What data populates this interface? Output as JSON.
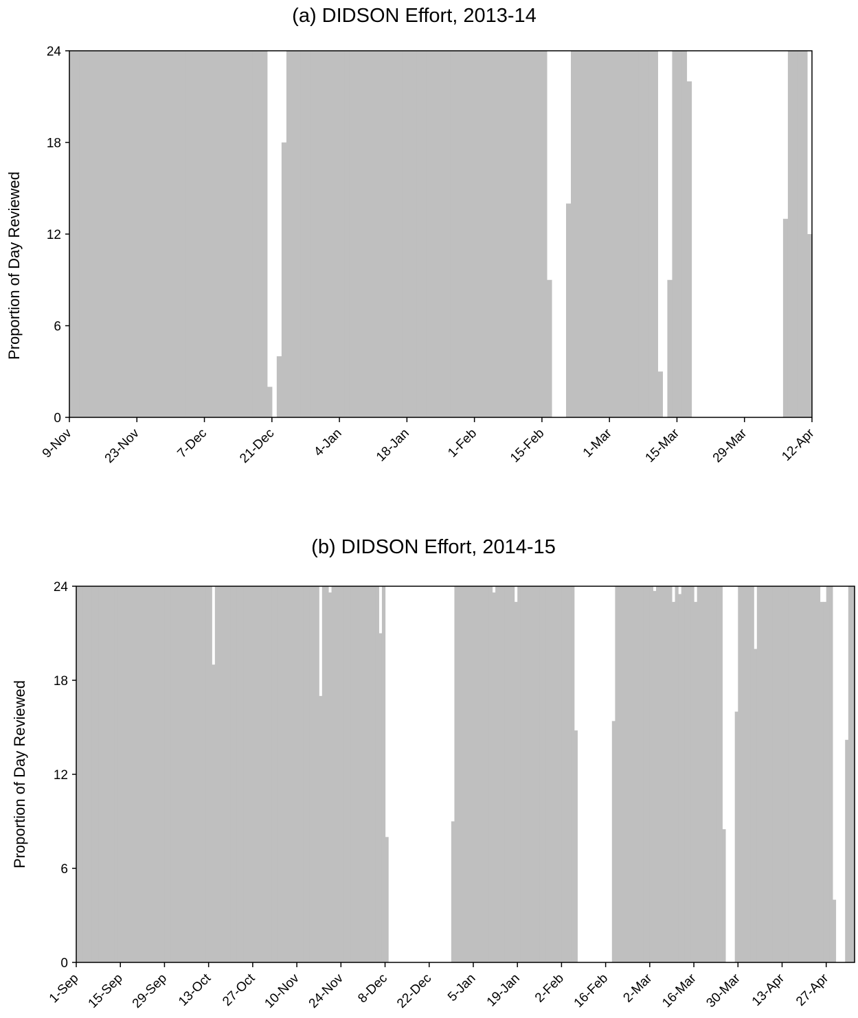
{
  "chart_data": [
    {
      "type": "bar",
      "title": "(a) DIDSON Effort, 2013-14",
      "xlabel": "",
      "ylabel": "Proportion of Day Reviewed",
      "ylim": [
        0,
        24
      ],
      "yticks": [
        "0",
        "6",
        "12",
        "18",
        "24"
      ],
      "xtick_labels": [
        "9-Nov",
        "23-Nov",
        "7-Dec",
        "21-Dec",
        "4-Jan",
        "18-Jan",
        "1-Feb",
        "15-Feb",
        "1-Mar",
        "15-Mar",
        "29-Mar",
        "12-Apr"
      ],
      "x_start": "2013-11-09",
      "bar_color": "#bfbfbf",
      "grid": false,
      "legend": "none",
      "series": [
        {
          "values": [
            24,
            24,
            24,
            24,
            24,
            24,
            24,
            24,
            24,
            24,
            24,
            24,
            24,
            24,
            24,
            24,
            24,
            24,
            24,
            24,
            24,
            24,
            24,
            24,
            24,
            24,
            24,
            24,
            24,
            24,
            24,
            24,
            24,
            24,
            24,
            24,
            24,
            24,
            24,
            24,
            24,
            2,
            0,
            4,
            18,
            24,
            24,
            24,
            24,
            24,
            24,
            24,
            24,
            24,
            24,
            24,
            24,
            24,
            24,
            24,
            24,
            24,
            24,
            24,
            24,
            24,
            24,
            24,
            24,
            24,
            24,
            24,
            24,
            24,
            24,
            24,
            24,
            24,
            24,
            24,
            24,
            24,
            24,
            24,
            24,
            24,
            24,
            24,
            24,
            24,
            24,
            24,
            24,
            24,
            24,
            24,
            24,
            24,
            24,
            9,
            0,
            0,
            0,
            14,
            24,
            24,
            24,
            24,
            24,
            24,
            24,
            24,
            24,
            24,
            24,
            24,
            24,
            24,
            24,
            24,
            24,
            24,
            3,
            0,
            9,
            24,
            24,
            24,
            22,
            0,
            0,
            0,
            0,
            0,
            0,
            0,
            0,
            0,
            0,
            0,
            0,
            0,
            0,
            0,
            0,
            0,
            0,
            0,
            13,
            24,
            24,
            24,
            24,
            12
          ]
        }
      ]
    },
    {
      "type": "bar",
      "title": "(b) DIDSON Effort, 2014-15",
      "xlabel": "",
      "ylabel": "Proportion of Day Reviewed",
      "ylim": [
        0,
        24
      ],
      "yticks": [
        "0",
        "6",
        "12",
        "18",
        "24"
      ],
      "xtick_labels": [
        "1-Sep",
        "15-Sep",
        "29-Sep",
        "13-Oct",
        "27-Oct",
        "10-Nov",
        "24-Nov",
        "8-Dec",
        "22-Dec",
        "5-Jan",
        "19-Jan",
        "2-Feb",
        "16-Feb",
        "2-Mar",
        "16-Mar",
        "30-Mar",
        "13-Apr",
        "27-Apr"
      ],
      "x_start": "2014-09-01",
      "bar_color": "#bfbfbf",
      "grid": false,
      "legend": "none",
      "series": [
        {
          "values": [
            24,
            24,
            24,
            24,
            24,
            24,
            24,
            24,
            24,
            24,
            24,
            24,
            24,
            24,
            24,
            24,
            24,
            24,
            24,
            24,
            24,
            24,
            24,
            24,
            24,
            24,
            24,
            24,
            24,
            24,
            24,
            24,
            24,
            24,
            24,
            24,
            24,
            24,
            24,
            24,
            24,
            24,
            24,
            19,
            24,
            24,
            24,
            24,
            24,
            24,
            24,
            24,
            24,
            24,
            24,
            24,
            24,
            24,
            24,
            24,
            24,
            24,
            24,
            24,
            24,
            24,
            24,
            24,
            24,
            24,
            24,
            24,
            24,
            24,
            24,
            24,
            24,
            17,
            24,
            24,
            23.6,
            24,
            24,
            24,
            24,
            24,
            24,
            24,
            24,
            24,
            24,
            24,
            24,
            24,
            24,
            24,
            21,
            24,
            8,
            0,
            0,
            0,
            0,
            0,
            0,
            0,
            0,
            0,
            0,
            0,
            0,
            0,
            0,
            0,
            0,
            0,
            0,
            0,
            0,
            9,
            24,
            24,
            24,
            24,
            24,
            24,
            24,
            24,
            24,
            24,
            24,
            24,
            23.6,
            24,
            24,
            24,
            24,
            24,
            24,
            23,
            24,
            24,
            24,
            24,
            24,
            24,
            24,
            24,
            24,
            24,
            24,
            24,
            24,
            24,
            24,
            24,
            24,
            24,
            14.8,
            0,
            0,
            0,
            0,
            0,
            0,
            0,
            0,
            0,
            0,
            0,
            15.4,
            24,
            24,
            24,
            24,
            24,
            24,
            24,
            24,
            24,
            24,
            24,
            24,
            23.7,
            24,
            24,
            24,
            24,
            24,
            23,
            24,
            23.5,
            24,
            24,
            24,
            24,
            23,
            24,
            24,
            24,
            24,
            24,
            24,
            24,
            24,
            8.5,
            0,
            0,
            0,
            16,
            24,
            24,
            24,
            24,
            24,
            20,
            24,
            24,
            24,
            24,
            24,
            24,
            24,
            24,
            24,
            24,
            24,
            24,
            24,
            24,
            24,
            24,
            24,
            24,
            24,
            24,
            23,
            23,
            24,
            24,
            4,
            0,
            0,
            0,
            14.2,
            24,
            24
          ]
        }
      ]
    }
  ]
}
